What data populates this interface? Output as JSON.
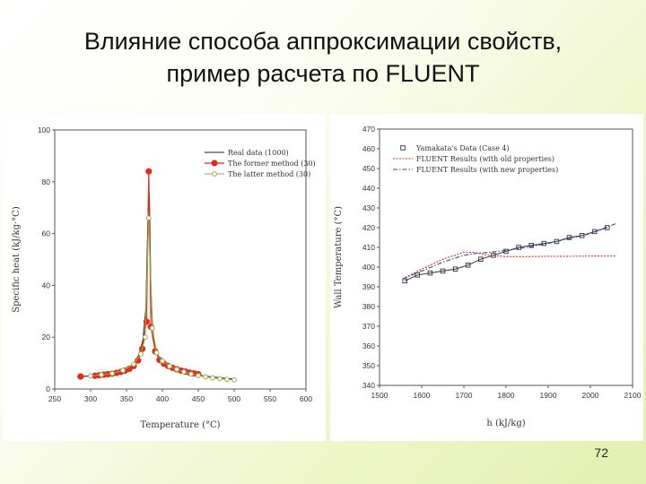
{
  "slide": {
    "title_line1": "Влияние способа аппроксимации свойств,",
    "title_line2": "пример расчета по FLUENT",
    "page_number": "72"
  },
  "chart_data": [
    {
      "type": "line",
      "xlabel": "Temperature (°C)",
      "ylabel": "Specific heat (kJ/kg·°C)",
      "xlim": [
        250,
        600
      ],
      "ylim": [
        0,
        100
      ],
      "xticks": [
        250,
        300,
        350,
        400,
        450,
        500,
        550,
        600
      ],
      "yticks": [
        0,
        20,
        40,
        60,
        80,
        100
      ],
      "legend": "top-right",
      "grid": false,
      "series": [
        {
          "name": "Real data (1000)",
          "color": "#222222",
          "marker": "none",
          "x": [
            285,
            310,
            330,
            350,
            360,
            368,
            373,
            377,
            379,
            381,
            382,
            383,
            384,
            386,
            388,
            392,
            398,
            410,
            430,
            460,
            500
          ],
          "y": [
            4.8,
            5.3,
            6.0,
            7.6,
            9.6,
            13.5,
            19.0,
            31.0,
            55.0,
            78.0,
            72.0,
            55.0,
            38.0,
            26.0,
            19.0,
            14.0,
            10.8,
            8.3,
            6.3,
            4.9,
            3.8
          ]
        },
        {
          "name": "The former method (30)",
          "color": "#e02c1e",
          "marker": "filled-circle",
          "x": [
            286,
            306,
            312,
            318,
            324,
            330,
            336,
            342,
            348,
            354,
            360,
            366,
            372,
            378,
            381,
            384,
            390,
            396,
            402,
            408,
            414,
            420,
            426,
            432,
            438,
            444,
            450
          ],
          "y": [
            4.8,
            5.1,
            5.3,
            5.5,
            5.7,
            5.9,
            6.2,
            6.6,
            7.1,
            7.8,
            8.9,
            11.0,
            15.5,
            26.0,
            84.0,
            24.0,
            14.5,
            11.2,
            9.8,
            8.9,
            8.2,
            7.6,
            7.1,
            6.7,
            6.3,
            6.0,
            5.7
          ]
        },
        {
          "name": "The latter method (30)",
          "color": "#9aa84a",
          "marker": "open-circle",
          "x": [
            300,
            315,
            330,
            345,
            360,
            370,
            376,
            381,
            386,
            392,
            400,
            410,
            420,
            430,
            440,
            450,
            460,
            470,
            480,
            490,
            500
          ],
          "y": [
            5.1,
            5.5,
            6.0,
            7.2,
            9.6,
            13.5,
            20.0,
            66.0,
            23.5,
            14.0,
            10.8,
            8.8,
            7.6,
            6.6,
            5.8,
            5.2,
            4.7,
            4.3,
            4.0,
            3.7,
            3.5
          ]
        }
      ]
    },
    {
      "type": "line",
      "xlabel": "h (kJ/kg)",
      "ylabel": "Wall Temperature (°C)",
      "xlim": [
        1500,
        2100
      ],
      "ylim": [
        340,
        470
      ],
      "xticks": [
        1500,
        1600,
        1700,
        1800,
        1900,
        2000,
        2100
      ],
      "yticks": [
        340,
        350,
        360,
        370,
        380,
        390,
        400,
        410,
        420,
        430,
        440,
        450,
        460,
        470
      ],
      "legend": "top-left",
      "grid": false,
      "series": [
        {
          "name": "Yamakata's Data (Case 4)",
          "color": "#333333",
          "marker": "open-square",
          "x": [
            1560,
            1590,
            1620,
            1650,
            1680,
            1710,
            1740,
            1770,
            1800,
            1830,
            1860,
            1890,
            1920,
            1950,
            1980,
            2010,
            2040
          ],
          "y": [
            393,
            396,
            397,
            398,
            399,
            401,
            404,
            406,
            408,
            410,
            411,
            412,
            413,
            415,
            416,
            418,
            420
          ]
        },
        {
          "name": "FLUENT Results (with old properties)",
          "color": "#e02c1e",
          "marker": "none",
          "x": [
            1555,
            1600,
            1650,
            1700,
            1720,
            1760,
            1800,
            1850,
            1900,
            1950,
            2000,
            2060
          ],
          "y": [
            394,
            399,
            404,
            407.5,
            407.5,
            406,
            405.3,
            405.3,
            405.5,
            405.5,
            405.6,
            405.6
          ]
        },
        {
          "name": "FLUENT Results (with new properties)",
          "color": "#3344aa",
          "marker": "none",
          "x": [
            1555,
            1600,
            1650,
            1700,
            1730,
            1760,
            1800,
            1850,
            1900,
            1950,
            2000,
            2060
          ],
          "y": [
            394,
            398,
            402.5,
            406,
            407,
            407.5,
            408.5,
            410,
            412,
            414.5,
            417,
            422
          ]
        }
      ]
    }
  ]
}
